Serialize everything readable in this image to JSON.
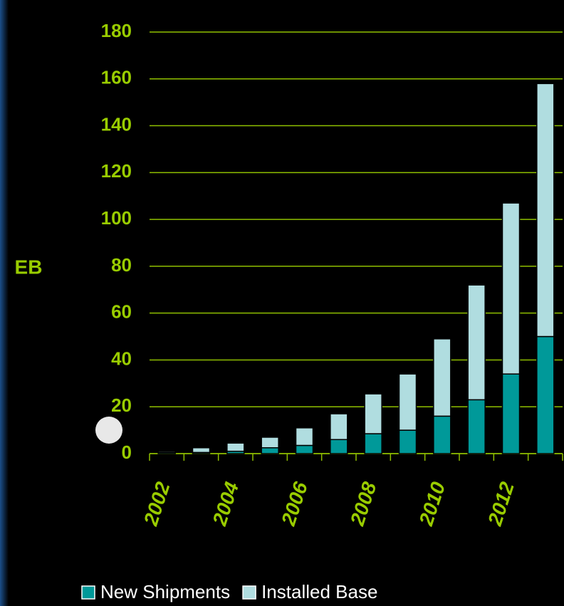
{
  "chart_data": {
    "type": "stacked_bar",
    "y_label": "EB",
    "categories": [
      "2002",
      null,
      "2004",
      null,
      "2006",
      null,
      "2008",
      null,
      "2010",
      null,
      "2012",
      null
    ],
    "series": [
      {
        "name": "New Shipments",
        "color": "#009999",
        "values": [
          0.5,
          0.5,
          1,
          2.5,
          3.5,
          6,
          8.5,
          10,
          16,
          23,
          34,
          50
        ]
      },
      {
        "name": "Installed Base",
        "color": "#b0dde0",
        "values": [
          0.5,
          2,
          3.5,
          4.5,
          7.5,
          11,
          17,
          24,
          33,
          49,
          73,
          108
        ]
      }
    ],
    "ylim": [
      0,
      180
    ],
    "yticks": [
      0,
      20,
      40,
      60,
      80,
      100,
      120,
      140,
      160,
      180
    ],
    "grid": true
  }
}
